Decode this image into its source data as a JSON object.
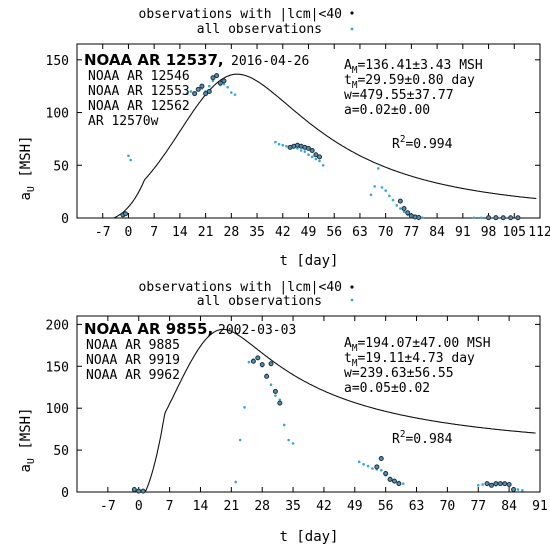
{
  "chart_data": [
    {
      "type": "scatter",
      "legend": {
        "placement": "top-right",
        "entries": [
          {
            "label": "observations with |lcm|<40",
            "marker": "dot-black"
          },
          {
            "label": "all observations",
            "marker": "dot-cyan"
          }
        ]
      },
      "title": "NOAA AR 12537,",
      "date": "2016-04-26",
      "other_regions": [
        "NOAA AR 12546",
        "NOAA AR 12553",
        "NOAA AR 12562",
        "AR 12570w"
      ],
      "fit_params": [
        "A_M=136.41±3.43 MSH",
        "t_M=29.59±0.80 day",
        "w=479.55±37.77",
        "a=0.02±0.00"
      ],
      "r2": "R²=0.994",
      "xlabel": "t [day]",
      "ylabel": "a_U [MSH]",
      "xlim": [
        -14,
        112
      ],
      "ylim": [
        0,
        165
      ],
      "xticks": [
        "-7",
        "0",
        "7",
        "14",
        "21",
        "28",
        "35",
        "42",
        "49",
        "56",
        "63",
        "70",
        "77",
        "84",
        "91",
        "98",
        "105",
        "112"
      ],
      "yticks": [
        "0",
        "50",
        "100",
        "150"
      ],
      "fit": {
        "A": 136.41,
        "tM": 29.59,
        "w": 479.55,
        "a": 0.02,
        "t0": -4
      },
      "series": [
        {
          "name": "observations with |lcm|<40",
          "color": "#1a2f45",
          "x": [
            -1.5,
            -0.8,
            18,
            19,
            20,
            21,
            22,
            23,
            24,
            25,
            26,
            44,
            45,
            46,
            47,
            48,
            49,
            50,
            51,
            52,
            74,
            75,
            76,
            77,
            78,
            79,
            98,
            100,
            102,
            104,
            106
          ],
          "y": [
            3,
            4,
            118,
            122,
            125,
            118,
            120,
            133,
            135,
            128,
            130,
            67,
            68,
            69,
            68,
            67,
            66,
            64,
            60,
            58,
            16,
            9,
            5,
            2,
            1,
            0.5,
            0.3,
            0.3,
            0.2,
            0.2,
            0.2
          ]
        },
        {
          "name": "all observations",
          "color": "#34a8d4",
          "x": [
            -1,
            0,
            0.6,
            16,
            17,
            18,
            19,
            20,
            21,
            22,
            23,
            24,
            25,
            26,
            27,
            28,
            29,
            40,
            41,
            42,
            43,
            44,
            45,
            46,
            47,
            48,
            49,
            50,
            51,
            52,
            53,
            66,
            67,
            68,
            69,
            70,
            71,
            72,
            73,
            74,
            75,
            76,
            77,
            78,
            79,
            80,
            94,
            96,
            98,
            100,
            102,
            104,
            106
          ],
          "y": [
            4,
            59,
            55,
            118,
            120,
            119,
            122,
            123,
            120,
            125,
            130,
            135,
            126,
            127,
            124,
            119,
            117,
            72,
            70,
            69,
            68,
            67,
            67,
            66,
            64,
            63,
            60,
            58,
            56,
            54,
            50,
            22,
            30,
            47,
            29,
            26,
            21,
            17,
            12,
            9,
            6,
            3,
            2,
            1,
            0.5,
            0.3,
            0.2,
            0.2,
            0.2,
            0.2,
            0.2,
            0.2,
            0.2
          ]
        }
      ]
    },
    {
      "type": "scatter",
      "legend": {
        "placement": "top-right",
        "entries": [
          {
            "label": "observations with |lcm|<40",
            "marker": "dot-black"
          },
          {
            "label": "all observations",
            "marker": "dot-cyan"
          }
        ]
      },
      "title": "NOAA AR 9855,",
      "date": "2002-03-03",
      "other_regions": [
        "NOAA AR 9885",
        "NOAA AR 9919",
        "NOAA AR 9962"
      ],
      "fit_params": [
        "A_M=194.07±47.00 MSH",
        "t_M=19.11±4.73 day",
        "w=239.63±56.55",
        "a=0.05±0.02"
      ],
      "r2": "R²=0.984",
      "xlabel": "t [day]",
      "ylabel": "a_U [MSH]",
      "xlim": [
        -14,
        91
      ],
      "ylim": [
        0,
        210
      ],
      "xticks": [
        "-7",
        "0",
        "7",
        "14",
        "21",
        "28",
        "35",
        "42",
        "49",
        "56",
        "63",
        "70",
        "77",
        "84",
        "91"
      ],
      "yticks": [
        "0",
        "50",
        "100",
        "150",
        "200"
      ],
      "fit": {
        "A": 194.07,
        "tM": 19.11,
        "w": 239.63,
        "a": 0.05,
        "t0": 1.5
      },
      "series": [
        {
          "name": "observations with |lcm|<40",
          "color": "#1a2f45",
          "x": [
            -1,
            0,
            1,
            26,
            27,
            28,
            29,
            30,
            31,
            32,
            54,
            55,
            56,
            57,
            58,
            59,
            79,
            80,
            81,
            82,
            83,
            84,
            85
          ],
          "y": [
            3,
            1,
            1,
            156,
            160,
            152,
            138,
            153,
            120,
            106,
            30,
            40,
            22,
            15,
            13,
            10,
            10,
            8,
            10,
            10,
            10,
            9,
            3
          ]
        },
        {
          "name": "all observations",
          "color": "#34a8d4",
          "x": [
            -1,
            0,
            1,
            22,
            23,
            24,
            25,
            26,
            27,
            28,
            29,
            30,
            31,
            32,
            33,
            34,
            35,
            50,
            51,
            52,
            53,
            54,
            55,
            56,
            57,
            58,
            59,
            60,
            77,
            78,
            79,
            80,
            81,
            82,
            83,
            84,
            85,
            86,
            87
          ],
          "y": [
            2,
            1,
            1,
            12,
            62,
            101,
            155,
            158,
            159,
            150,
            140,
            128,
            115,
            110,
            80,
            62,
            58,
            36,
            33,
            31,
            28,
            27,
            26,
            20,
            17,
            14,
            12,
            10,
            8,
            9,
            10,
            9,
            8,
            10,
            9,
            8,
            4,
            3,
            2
          ]
        }
      ]
    }
  ]
}
